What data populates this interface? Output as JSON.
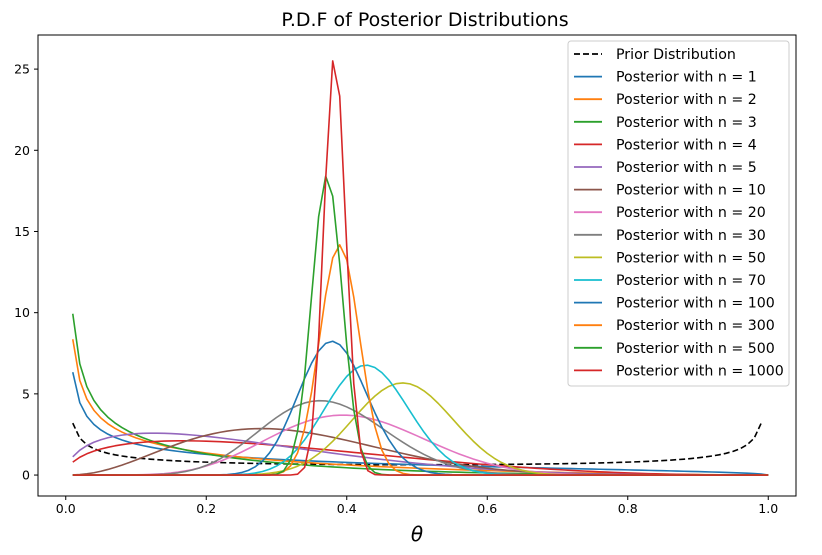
{
  "chart_data": {
    "type": "line",
    "title": "P.D.F of Posterior Distributions",
    "xlabel": "θ",
    "ylabel": "",
    "xlim": [
      -0.0395,
      1.0395
    ],
    "ylim": [
      -1.29,
      27.1
    ],
    "xticks": [
      0.0,
      0.2,
      0.4,
      0.6,
      0.8,
      1.0
    ],
    "xtick_labels": [
      "0.0",
      "0.2",
      "0.4",
      "0.6",
      "0.8",
      "1.0"
    ],
    "yticks": [
      0,
      5,
      10,
      15,
      20,
      25
    ],
    "ytick_labels": [
      "0",
      "5",
      "10",
      "15",
      "20",
      "25"
    ],
    "grid": false,
    "legend_position": "top-right",
    "prior": {
      "name": "Prior Distribution",
      "dashed": true,
      "color": "#000000",
      "beta": [
        0.5,
        0.5
      ]
    },
    "series": [
      {
        "name": "Posterior with n = 1",
        "color": "#1f77b4",
        "beta": [
          0.5,
          1.5
        ]
      },
      {
        "name": "Posterior with n = 2",
        "color": "#ff7f0e",
        "beta": [
          0.5,
          2.5
        ]
      },
      {
        "name": "Posterior with n = 3",
        "color": "#2ca02c",
        "beta": [
          0.5,
          3.5
        ]
      },
      {
        "name": "Posterior with n = 4",
        "color": "#d62728",
        "beta": [
          1.5,
          3.5
        ]
      },
      {
        "name": "Posterior with n = 5",
        "color": "#9467bd",
        "beta": [
          1.5,
          4.5
        ]
      },
      {
        "name": "Posterior with n = 10",
        "color": "#8c564b",
        "beta": [
          3.5,
          7.5
        ]
      },
      {
        "name": "Posterior with n = 20",
        "color": "#e377c2",
        "beta": [
          8.5,
          12.5
        ]
      },
      {
        "name": "Posterior with n = 30",
        "color": "#7f7f7f",
        "beta": [
          11.5,
          19.5
        ]
      },
      {
        "name": "Posterior with n = 50",
        "color": "#bcbd22",
        "beta": [
          24.5,
          26.5
        ]
      },
      {
        "name": "Posterior with n = 70",
        "color": "#17becf",
        "beta": [
          30.5,
          40.5
        ]
      },
      {
        "name": "Posterior with n = 100",
        "color": "#1f77b4",
        "beta": [
          38.5,
          62.5
        ]
      },
      {
        "name": "Posterior with n = 300",
        "color": "#ff7f0e",
        "beta": [
          117.5,
          183.5
        ]
      },
      {
        "name": "Posterior with n = 500",
        "color": "#2ca02c",
        "beta": [
          186.5,
          314.5
        ]
      },
      {
        "name": "Posterior with n = 1000",
        "color": "#d62728",
        "beta": [
          383.5,
          617.5
        ]
      }
    ]
  }
}
